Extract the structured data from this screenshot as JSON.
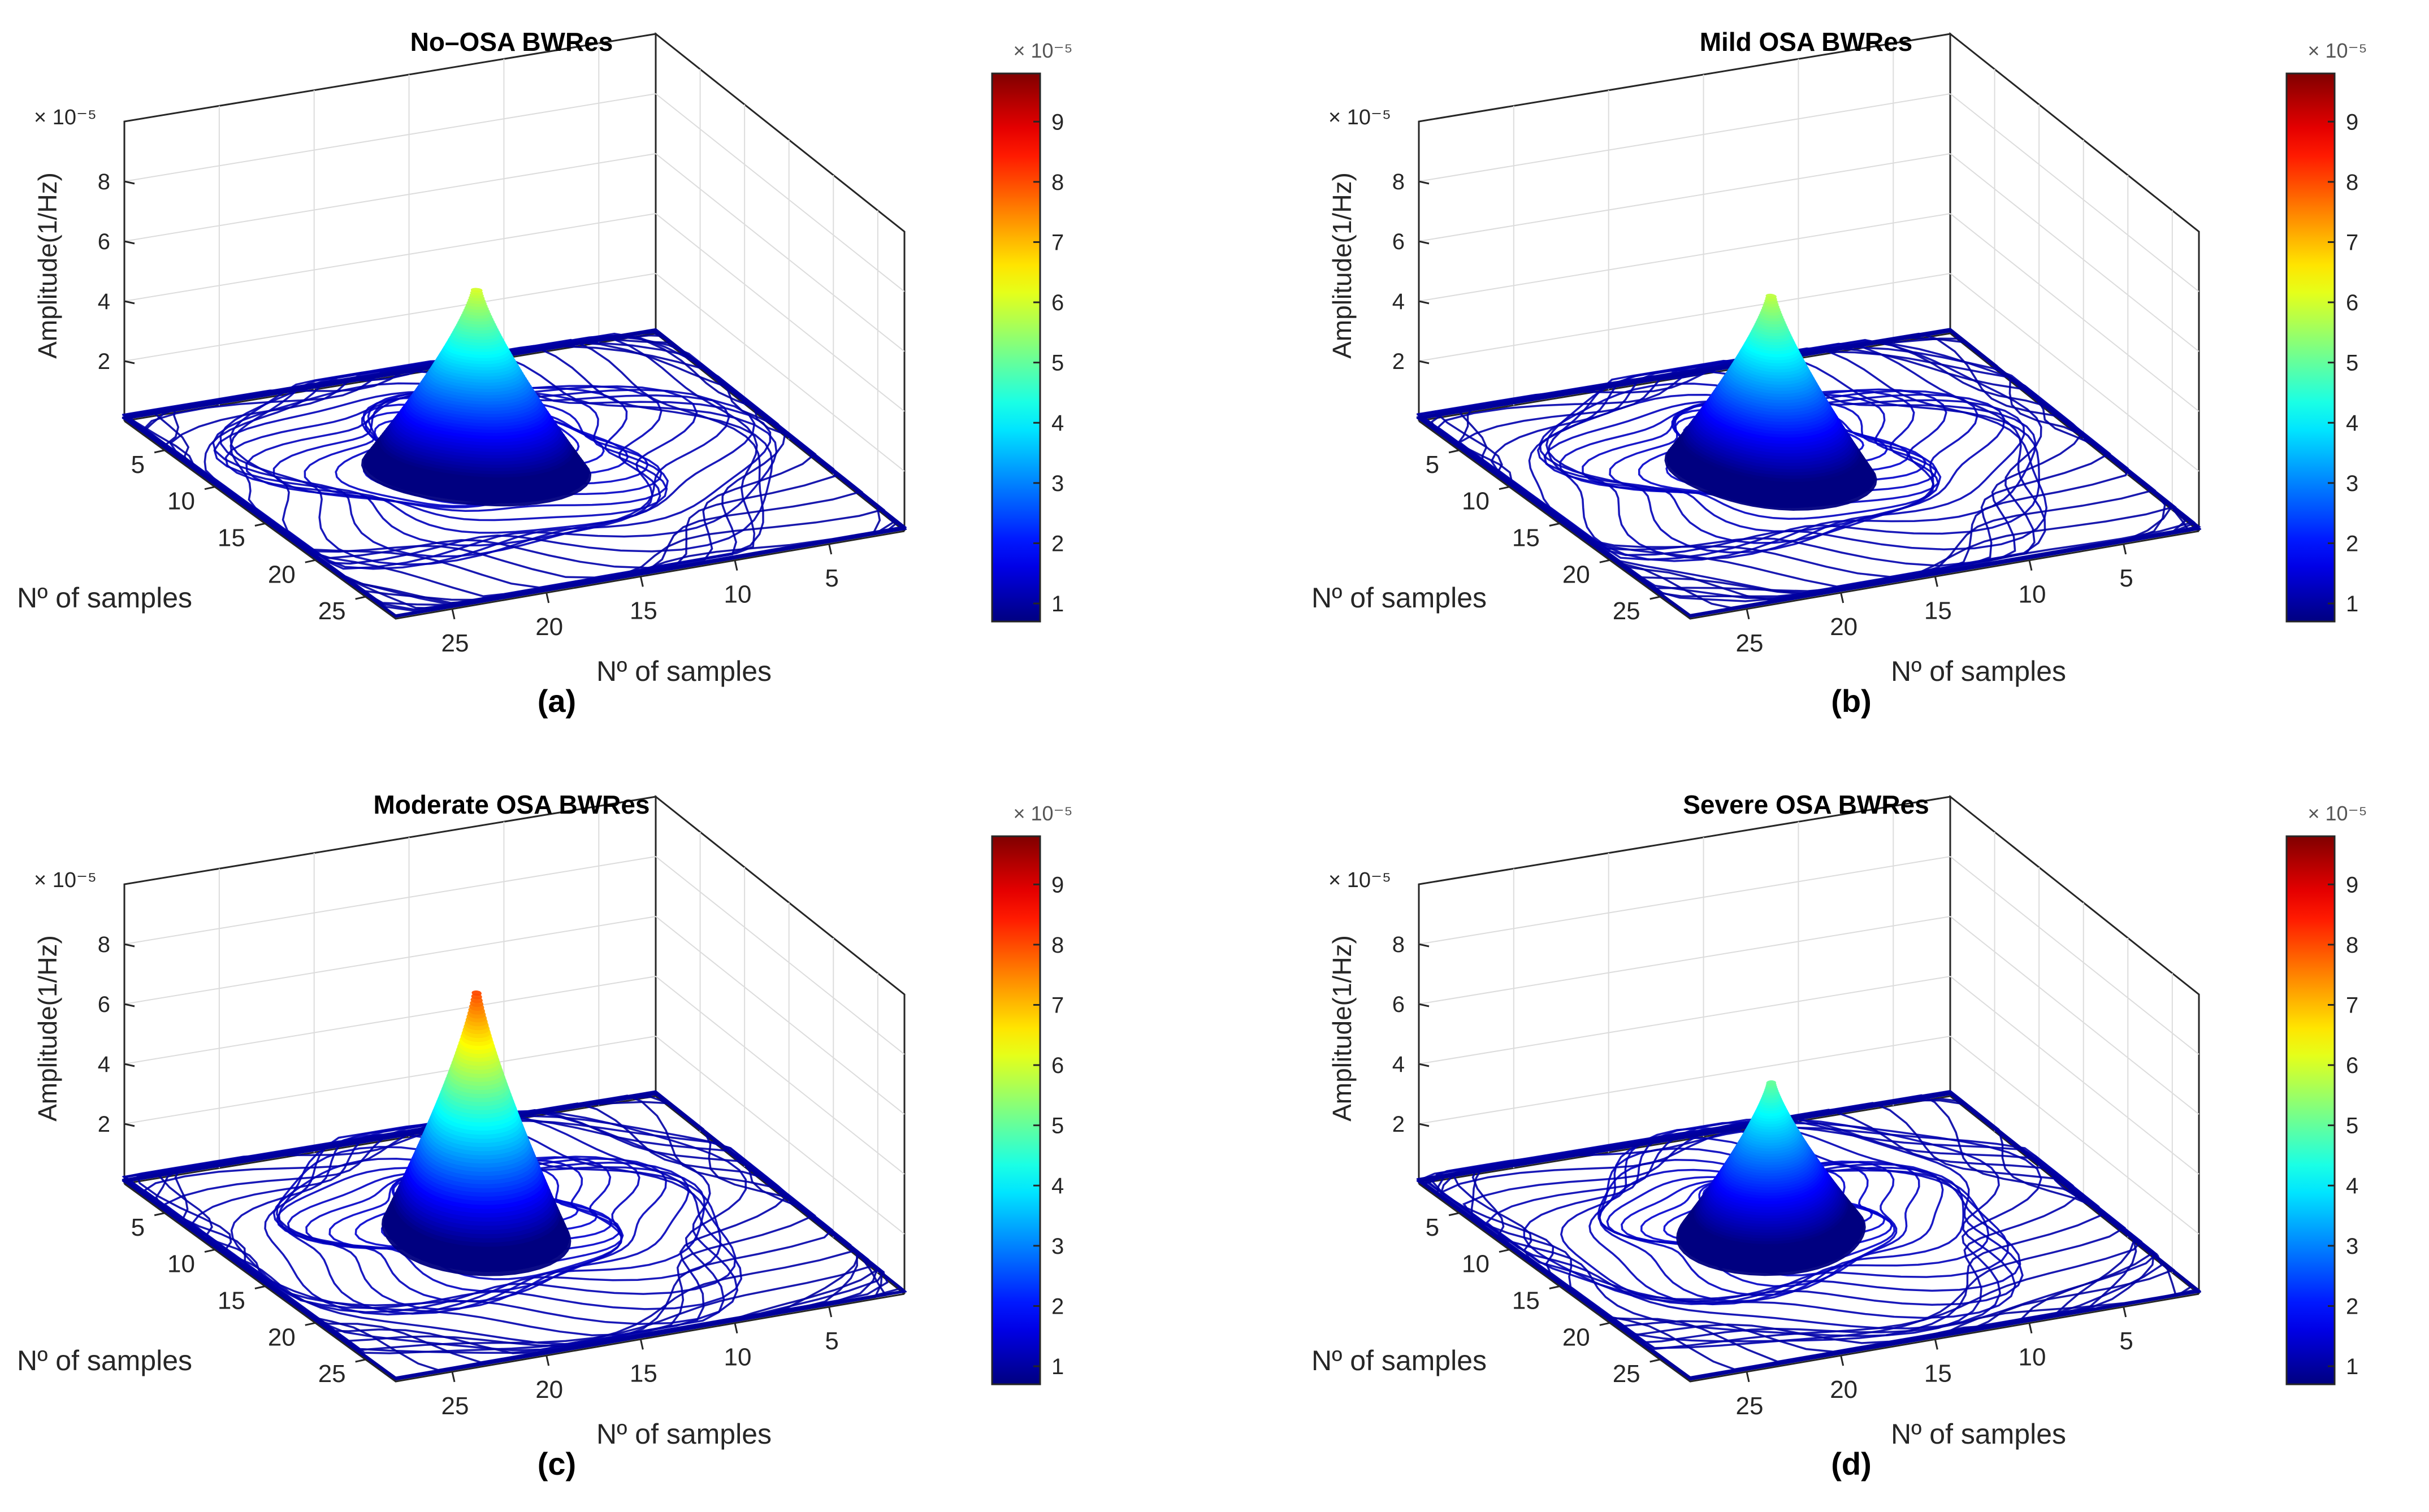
{
  "chart_data": [
    {
      "type": "contour3d",
      "panel_label": "(a)",
      "title": "No–OSA BWRes",
      "zlabel": "Amplitude(1/Hz)",
      "xlabel": "Nº of samples",
      "ylabel": "Nº of samples",
      "z_exponent": "× 10⁻⁵",
      "zticks": [
        "2",
        "4",
        "6",
        "8"
      ],
      "xticks": [
        "5",
        "10",
        "15",
        "20",
        "25"
      ],
      "yticks": [
        "5",
        "10",
        "15",
        "20",
        "25"
      ],
      "x_range": [
        1,
        28
      ],
      "y_range": [
        1,
        28
      ],
      "zlim": [
        0,
        10
      ],
      "peak": {
        "x": 13,
        "y": 13,
        "z": 6.0
      },
      "colorbar": {
        "ticks": [
          "1",
          "2",
          "3",
          "4",
          "5",
          "6",
          "7",
          "8",
          "9"
        ],
        "range": [
          0.7,
          9.8
        ],
        "exponent": "× 10⁻⁵"
      }
    },
    {
      "type": "contour3d",
      "panel_label": "(b)",
      "title": "Mild OSA BWRes",
      "zlabel": "Amplitude(1/Hz)",
      "xlabel": "Nº of samples",
      "ylabel": "Nº of samples",
      "z_exponent": "× 10⁻⁵",
      "zticks": [
        "2",
        "4",
        "6",
        "8"
      ],
      "xticks": [
        "5",
        "10",
        "15",
        "20",
        "25"
      ],
      "yticks": [
        "5",
        "10",
        "15",
        "20",
        "25"
      ],
      "x_range": [
        1,
        28
      ],
      "y_range": [
        1,
        28
      ],
      "zlim": [
        0,
        10
      ],
      "peak": {
        "x": 13,
        "y": 13,
        "z": 5.8
      },
      "colorbar": {
        "ticks": [
          "1",
          "2",
          "3",
          "4",
          "5",
          "6",
          "7",
          "8",
          "9"
        ],
        "range": [
          0.7,
          9.8
        ],
        "exponent": "× 10⁻⁵"
      }
    },
    {
      "type": "contour3d",
      "panel_label": "(c)",
      "title": "Moderate OSA BWRes",
      "zlabel": "Amplitude(1/Hz)",
      "xlabel": "Nº of samples",
      "ylabel": "Nº of samples",
      "z_exponent": "× 10⁻⁵",
      "zticks": [
        "2",
        "4",
        "6",
        "8"
      ],
      "xticks": [
        "5",
        "10",
        "15",
        "20",
        "25"
      ],
      "yticks": [
        "5",
        "10",
        "15",
        "20",
        "25"
      ],
      "x_range": [
        1,
        28
      ],
      "y_range": [
        1,
        28
      ],
      "zlim": [
        0,
        10
      ],
      "peak": {
        "x": 13,
        "y": 13,
        "z": 8.0
      },
      "colorbar": {
        "ticks": [
          "1",
          "2",
          "3",
          "4",
          "5",
          "6",
          "7",
          "8",
          "9"
        ],
        "range": [
          0.7,
          9.8
        ],
        "exponent": "× 10⁻⁵"
      }
    },
    {
      "type": "contour3d",
      "panel_label": "(d)",
      "title": "Severe OSA BWRes",
      "zlabel": "Amplitude(1/Hz)",
      "xlabel": "Nº of samples",
      "ylabel": "Nº of samples",
      "z_exponent": "× 10⁻⁵",
      "zticks": [
        "2",
        "4",
        "6",
        "8"
      ],
      "xticks": [
        "5",
        "10",
        "15",
        "20",
        "25"
      ],
      "yticks": [
        "5",
        "10",
        "15",
        "20",
        "25"
      ],
      "x_range": [
        1,
        28
      ],
      "y_range": [
        1,
        28
      ],
      "zlim": [
        0,
        10
      ],
      "peak": {
        "x": 13,
        "y": 13,
        "z": 5.0
      },
      "colorbar": {
        "ticks": [
          "1",
          "2",
          "3",
          "4",
          "5",
          "6",
          "7",
          "8",
          "9"
        ],
        "range": [
          0.7,
          9.8
        ],
        "exponent": "× 10⁻⁵"
      }
    }
  ]
}
